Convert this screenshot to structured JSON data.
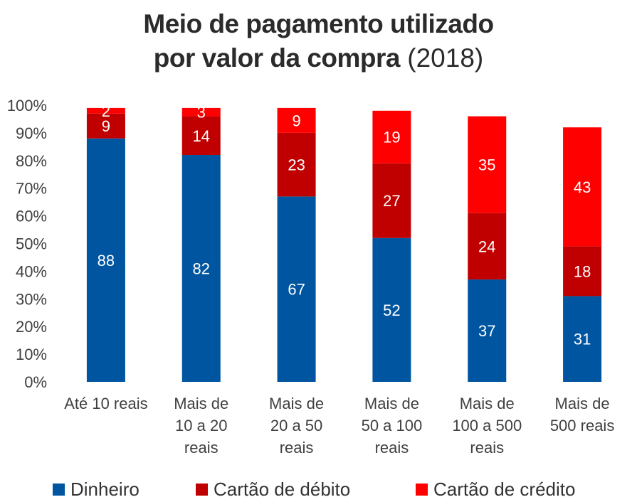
{
  "title": {
    "line1": "Meio de pagamento utilizado",
    "line2_bold": "por valor da compra",
    "line2_year": "(2018)"
  },
  "chart_data": {
    "type": "bar",
    "stacked": true,
    "categories": [
      [
        "Até 10 reais"
      ],
      [
        "Mais de",
        "10 a 20",
        "reais"
      ],
      [
        "Mais de",
        "20 a 50",
        "reais"
      ],
      [
        "Mais de",
        "50 a 100",
        "reais"
      ],
      [
        "Mais de",
        "100 a 500",
        "reais"
      ],
      [
        "Mais de",
        "500 reais"
      ]
    ],
    "series": [
      {
        "name": "Dinheiro",
        "color": "#0055A0",
        "values": [
          88,
          82,
          67,
          52,
          37,
          31
        ]
      },
      {
        "name": "Cartão de débito",
        "color": "#C00000",
        "values": [
          9,
          14,
          23,
          27,
          24,
          18
        ]
      },
      {
        "name": "Cartão de crédito",
        "color": "#FF0000",
        "values": [
          2,
          3,
          9,
          19,
          35,
          43
        ]
      }
    ],
    "ylim": [
      0,
      100
    ],
    "yticks": [
      "0%",
      "10%",
      "20%",
      "30%",
      "40%",
      "50%",
      "60%",
      "70%",
      "80%",
      "90%",
      "100%"
    ],
    "grid": false,
    "legend_position": "bottom"
  }
}
